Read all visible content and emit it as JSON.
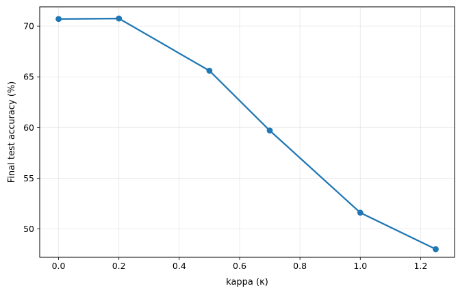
{
  "chart_data": {
    "type": "line",
    "title": "",
    "xlabel": "kappa (κ)",
    "ylabel": "Final test accuracy (%)",
    "x": [
      0.0,
      0.2,
      0.5,
      0.7,
      1.0,
      1.25
    ],
    "series": [
      {
        "values": [
          70.7,
          70.75,
          65.6,
          59.7,
          51.6,
          48.0
        ],
        "color": "#1f77b4"
      }
    ],
    "xlim": [
      -0.0625,
      1.3125
    ],
    "ylim": [
      47.2,
      71.9
    ],
    "xticks": [
      0.0,
      0.2,
      0.4,
      0.6,
      0.8,
      1.0,
      1.2
    ],
    "xtick_labels": [
      "0.0",
      "0.2",
      "0.4",
      "0.6",
      "0.8",
      "1.0",
      "1.2"
    ],
    "yticks": [
      50,
      55,
      60,
      65,
      70
    ],
    "ytick_labels": [
      "50",
      "55",
      "60",
      "65",
      "70"
    ],
    "grid": true,
    "markers": true
  }
}
